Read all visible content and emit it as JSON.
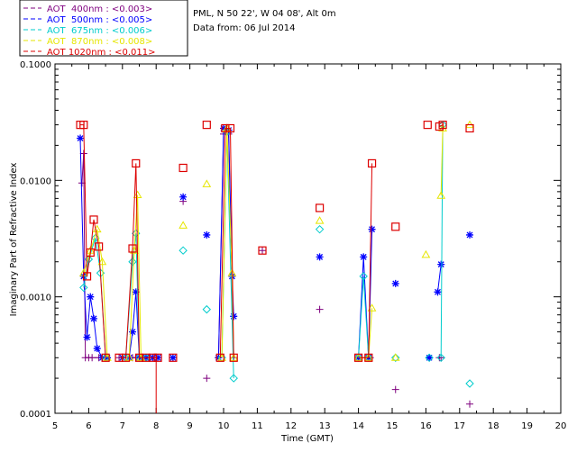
{
  "chart_data": {
    "type": "line",
    "title": "PML, N 50 22', W 04 08', Alt 0m",
    "subtitle": "Data from: 06 Jul 2014",
    "xlabel": "Time (GMT)",
    "ylabel": "Imaginary Part of Refractive Index",
    "xlim": [
      5,
      20
    ],
    "ylim": [
      0.0001,
      0.1
    ],
    "yscale": "log",
    "x_ticks": [
      "5",
      "6",
      "7",
      "8",
      "9",
      "10",
      "11",
      "12",
      "13",
      "14",
      "15",
      "16",
      "17",
      "18",
      "19",
      "20"
    ],
    "y_ticks": [
      "0.0001",
      "0.0010",
      "0.0100",
      "0.1000"
    ],
    "legend_position": "top-left",
    "series": [
      {
        "name": "AOT  400nm : <0.003>",
        "color": "#7f007f",
        "marker": "plus",
        "segments": [
          {
            "x": [
              5.8,
              5.85,
              5.9,
              6.0,
              6.1,
              6.3,
              6.5
            ],
            "y": [
              0.0095,
              0.017,
              0.0003,
              0.0003,
              0.0003,
              0.0003,
              0.0003
            ]
          },
          {
            "x": [
              6.9,
              7.1,
              7.3,
              7.4,
              7.5,
              7.7,
              7.9,
              8.0
            ],
            "y": [
              0.0003,
              0.0003,
              0.0003,
              0.0003,
              0.0003,
              0.0003,
              0.0003,
              0.0003
            ]
          },
          {
            "x": [
              9.85,
              10.0,
              10.15,
              10.3
            ],
            "y": [
              0.0003,
              0.025,
              0.025,
              0.0003
            ]
          },
          {
            "x": [
              14.0,
              14.2,
              14.35
            ],
            "y": [
              0.0003,
              0.0003,
              0.0003
            ]
          },
          {
            "x": [
              16.4,
              16.45
            ],
            "y": [
              0.0003,
              0.0003
            ]
          }
        ],
        "points": {
          "x": [
            8.5,
            8.8,
            9.5,
            11.15,
            12.85,
            15.1,
            16.1,
            17.3
          ],
          "y": [
            0.0003,
            0.0066,
            0.0002,
            0.0025,
            0.00078,
            0.00016,
            0.0003,
            0.00012
          ]
        }
      },
      {
        "name": "AOT  500nm : <0.005>",
        "color": "#0000ff",
        "marker": "asterisk",
        "segments": [
          {
            "x": [
              5.75,
              5.85,
              5.95,
              6.05,
              6.15,
              6.25,
              6.4,
              6.55
            ],
            "y": [
              0.023,
              0.0015,
              0.00045,
              0.001,
              0.00065,
              0.00036,
              0.0003,
              0.0003
            ]
          },
          {
            "x": [
              7.0,
              7.2,
              7.3,
              7.4,
              7.5,
              7.7,
              7.9,
              8.05
            ],
            "y": [
              0.0003,
              0.0003,
              0.0005,
              0.0011,
              0.0003,
              0.0003,
              0.0003,
              0.0003
            ]
          },
          {
            "x": [
              9.85,
              10.0,
              10.15,
              10.25,
              10.3
            ],
            "y": [
              0.0003,
              0.028,
              0.027,
              0.0015,
              0.00068
            ]
          },
          {
            "x": [
              14.0,
              14.15,
              14.3,
              14.4
            ],
            "y": [
              0.0003,
              0.0022,
              0.0003,
              0.0038
            ]
          },
          {
            "x": [
              16.35,
              16.45
            ],
            "y": [
              0.0011,
              0.0019
            ]
          }
        ],
        "points": {
          "x": [
            8.5,
            8.8,
            9.5,
            12.85,
            15.1,
            16.1,
            17.3
          ],
          "y": [
            0.0003,
            0.0072,
            0.0034,
            0.0022,
            0.0013,
            0.0003,
            0.0034
          ]
        }
      },
      {
        "name": "AOT  675nm : <0.006>",
        "color": "#00cccc",
        "marker": "diamond",
        "segments": [
          {
            "x": [
              5.85,
              6.0,
              6.2,
              6.35,
              6.5
            ],
            "y": [
              0.0012,
              0.0021,
              0.0032,
              0.0016,
              0.0003
            ]
          },
          {
            "x": [
              7.1,
              7.3,
              7.4,
              7.5,
              7.7
            ],
            "y": [
              0.0003,
              0.002,
              0.0035,
              0.0003,
              0.0003
            ]
          },
          {
            "x": [
              9.95,
              10.1,
              10.3
            ],
            "y": [
              0.0003,
              0.026,
              0.0002
            ]
          },
          {
            "x": [
              14.0,
              14.15,
              14.3
            ],
            "y": [
              0.0003,
              0.0015,
              0.0003
            ]
          },
          {
            "x": [
              16.45,
              16.5
            ],
            "y": [
              0.0003,
              0.03
            ]
          }
        ],
        "points": {
          "x": [
            8.8,
            9.5,
            12.85,
            15.1,
            16.1,
            17.3
          ],
          "y": [
            0.0025,
            0.00078,
            0.0038,
            0.0003,
            0.0003,
            0.00018
          ]
        }
      },
      {
        "name": "AOT  870nm : <0.008>",
        "color": "#e6e600",
        "marker": "triangle",
        "segments": [
          {
            "x": [
              5.85,
              6.05,
              6.25,
              6.4,
              6.55
            ],
            "y": [
              0.0016,
              0.0025,
              0.0038,
              0.002,
              0.0003
            ]
          },
          {
            "x": [
              7.2,
              7.35,
              7.45,
              7.55
            ],
            "y": [
              0.0003,
              0.0025,
              0.0075,
              0.0003
            ]
          },
          {
            "x": [
              9.95,
              10.1,
              10.25,
              10.3
            ],
            "y": [
              0.0003,
              0.028,
              0.0016,
              0.0003
            ]
          },
          {
            "x": [
              14.0,
              14.3,
              14.4
            ],
            "y": [
              0.0003,
              0.0003,
              0.0008
            ]
          },
          {
            "x": [
              16.45,
              16.5
            ],
            "y": [
              0.0074,
              0.028
            ]
          }
        ],
        "points": {
          "x": [
            8.8,
            9.5,
            12.85,
            15.1,
            16.0,
            17.3
          ],
          "y": [
            0.0041,
            0.0093,
            0.0045,
            0.0003,
            0.0023,
            0.03
          ]
        }
      },
      {
        "name": "AOT 1020nm : <0.011>",
        "color": "#dd0000",
        "marker": "square",
        "segments": [
          {
            "x": [
              5.75,
              5.85,
              5.95,
              6.05,
              6.15,
              6.3,
              6.5
            ],
            "y": [
              0.03,
              0.03,
              0.0015,
              0.0024,
              0.0046,
              0.0027,
              0.0003
            ]
          },
          {
            "x": [
              6.9,
              7.1,
              7.3,
              7.4,
              7.5,
              7.7,
              7.9,
              8.05
            ],
            "y": [
              0.0003,
              0.0003,
              0.0026,
              0.014,
              0.0003,
              0.0003,
              0.0003,
              0.0003
            ]
          },
          {
            "x": [
              9.9,
              10.05,
              10.2,
              10.3
            ],
            "y": [
              0.0003,
              0.028,
              0.028,
              0.0003
            ]
          },
          {
            "x": [
              14.0,
              14.3,
              14.4
            ],
            "y": [
              0.0003,
              0.0003,
              0.014
            ]
          },
          {
            "x": [
              16.4,
              16.5
            ],
            "y": [
              0.029,
              0.03
            ]
          }
        ],
        "points": {
          "x": [
            8.5,
            8.8,
            9.5,
            11.15,
            12.85,
            15.1,
            16.05,
            17.3
          ],
          "y": [
            0.0003,
            0.0128,
            0.03,
            0.0025,
            0.0058,
            0.004,
            0.03,
            0.028
          ]
        }
      }
    ],
    "extra_lines": [
      {
        "color": "#dd0000",
        "x": [
          8.0,
          8.0
        ],
        "y": [
          0.0003,
          0.0001
        ]
      }
    ]
  }
}
